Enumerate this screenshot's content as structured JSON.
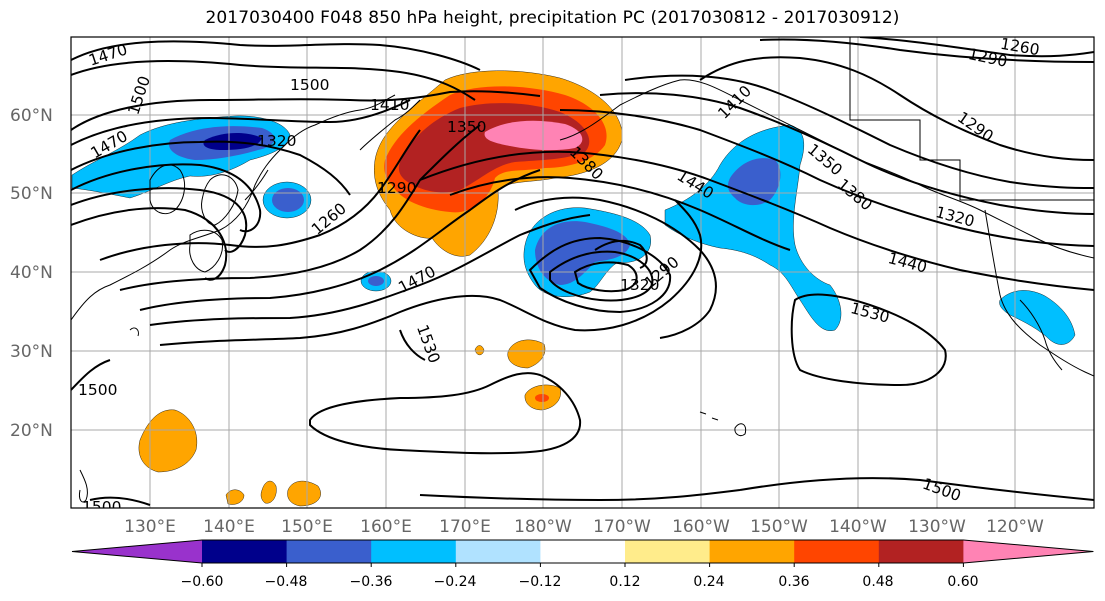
{
  "title": "2017030400 F048 850 hPa height, precipitation PC (2017030812 - 2017030912)",
  "lat_labels": [
    "60°N",
    "50°N",
    "40°N",
    "30°N",
    "20°N"
  ],
  "lon_labels": [
    "130°E",
    "140°E",
    "150°E",
    "160°E",
    "170°E",
    "180°W",
    "170°W",
    "160°W",
    "150°W",
    "140°W",
    "130°W",
    "120°W"
  ],
  "contour_labels": [
    "1470",
    "1500",
    "1470",
    "1500",
    "1410",
    "1320",
    "1350",
    "1290",
    "1260",
    "1380",
    "1410",
    "1440",
    "1350",
    "1380",
    "1320",
    "1290",
    "1260",
    "1290",
    "1290",
    "1440",
    "1320",
    "1470",
    "1530",
    "1530",
    "1500",
    "1500",
    "1500"
  ],
  "colorbar": {
    "ticks": [
      "−0.60",
      "−0.48",
      "−0.36",
      "−0.24",
      "−0.12",
      "0.12",
      "0.24",
      "0.36",
      "0.48",
      "0.60"
    ],
    "colors": [
      "#9932cc",
      "#00008b",
      "#3a5fcd",
      "#00bfff",
      "#b0e2ff",
      "#ffffff",
      "#ffec8b",
      "#ffa500",
      "#ff4500",
      "#b22222",
      "#ff83b4"
    ]
  }
}
